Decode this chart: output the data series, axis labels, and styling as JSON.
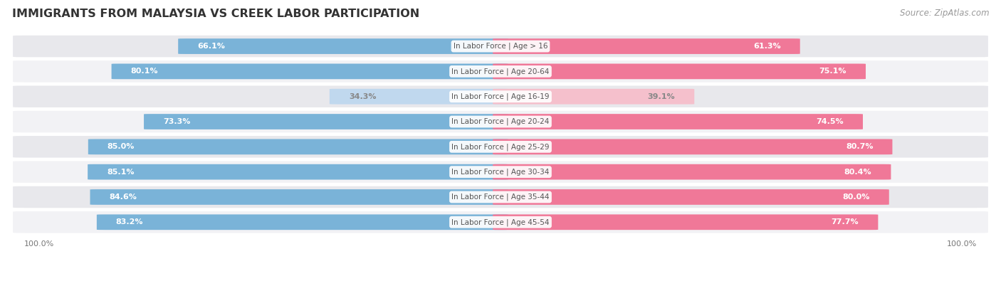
{
  "title": "IMMIGRANTS FROM MALAYSIA VS CREEK LABOR PARTICIPATION",
  "source": "Source: ZipAtlas.com",
  "categories": [
    "In Labor Force | Age > 16",
    "In Labor Force | Age 20-64",
    "In Labor Force | Age 16-19",
    "In Labor Force | Age 20-24",
    "In Labor Force | Age 25-29",
    "In Labor Force | Age 30-34",
    "In Labor Force | Age 35-44",
    "In Labor Force | Age 45-54"
  ],
  "malaysia_values": [
    66.1,
    80.1,
    34.3,
    73.3,
    85.0,
    85.1,
    84.6,
    83.2
  ],
  "creek_values": [
    61.3,
    75.1,
    39.1,
    74.5,
    80.7,
    80.4,
    80.0,
    77.7
  ],
  "malaysia_color_strong": "#7ab3d8",
  "malaysia_color_light": "#c0d8ee",
  "creek_color_strong": "#f07898",
  "creek_color_light": "#f5c0cc",
  "row_bg_even": "#e8e8ec",
  "row_bg_odd": "#f2f2f5",
  "label_color_white": "#ffffff",
  "label_color_dark": "#888888",
  "center_label_color": "#555555",
  "max_value": 100.0,
  "figsize": [
    14.06,
    3.95
  ],
  "dpi": 100
}
